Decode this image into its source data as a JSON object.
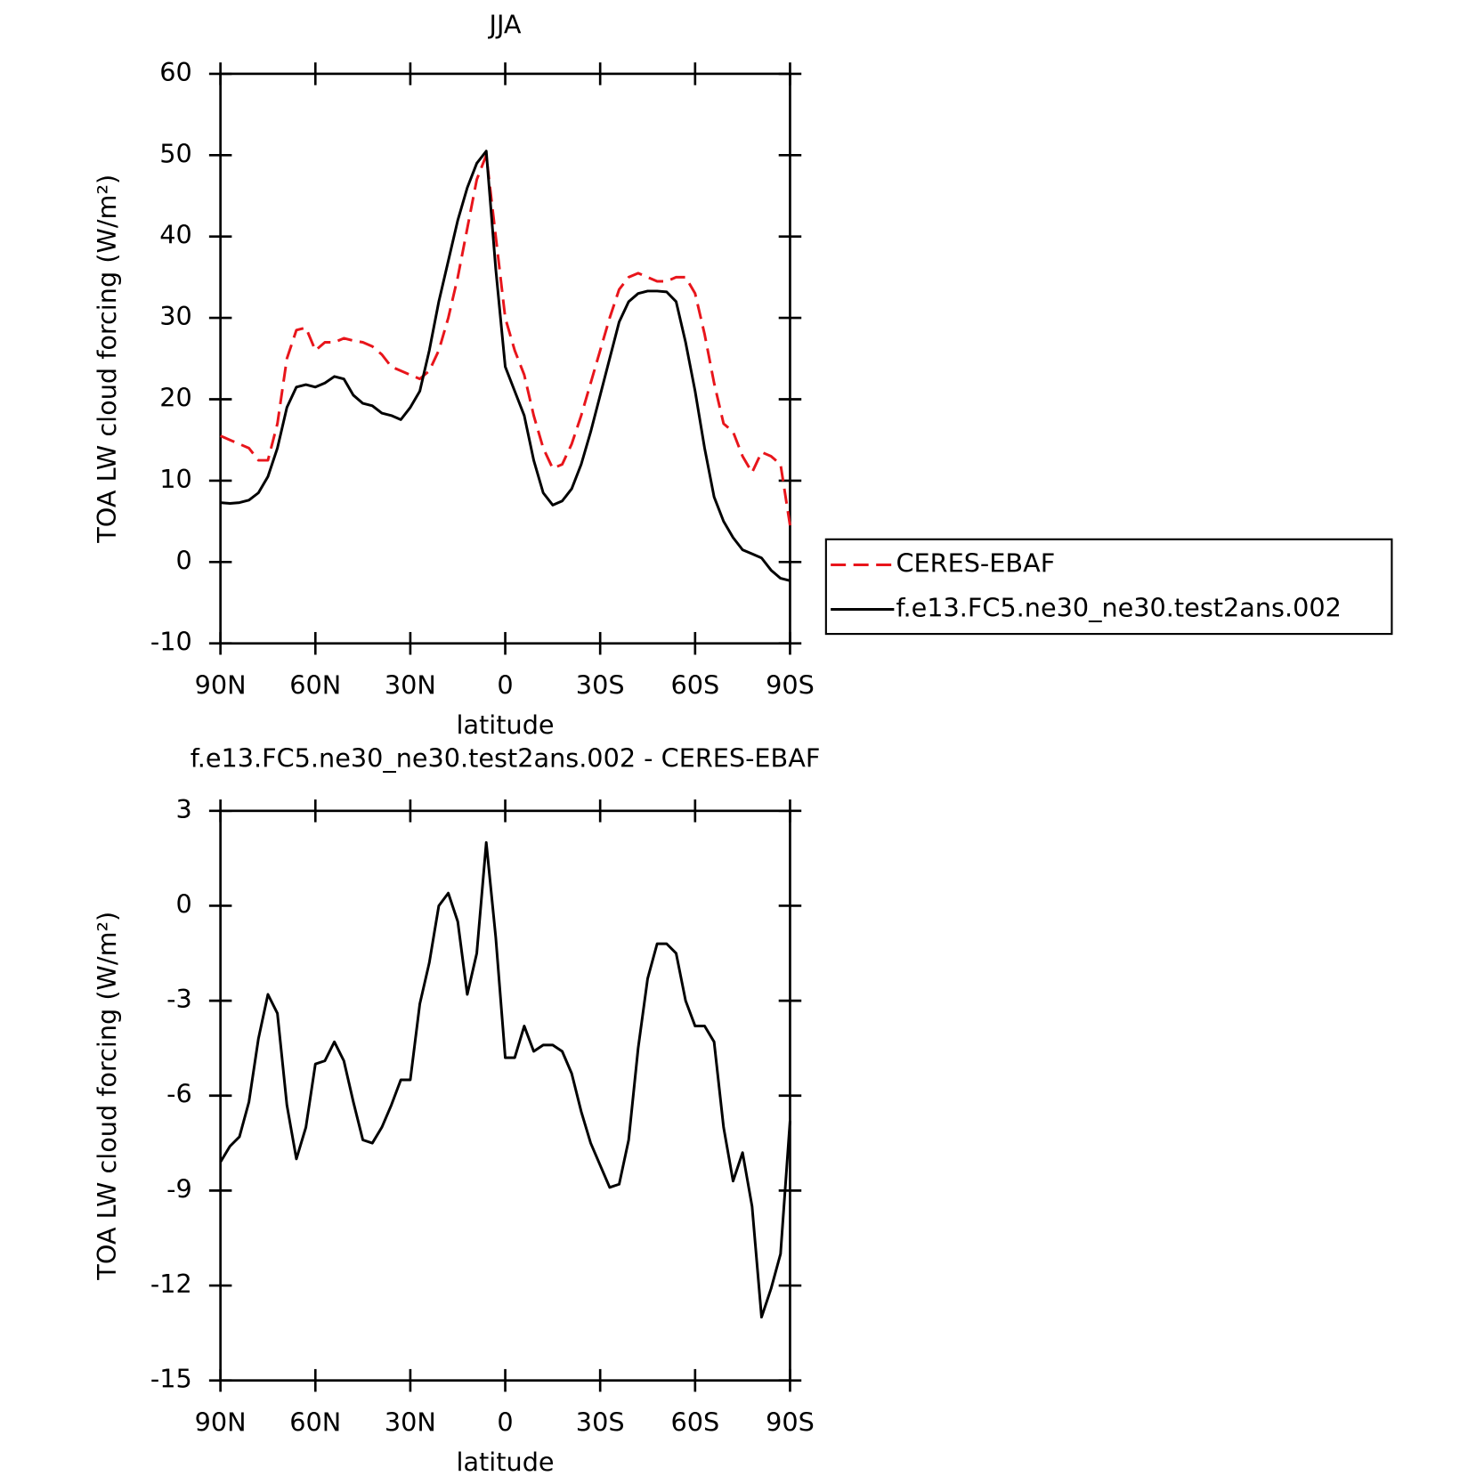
{
  "chart_data": [
    {
      "type": "line",
      "title": "JJA",
      "x_label": "latitude",
      "y_label": "TOA LW cloud forcing (W/m²)",
      "x": [
        90,
        87,
        84,
        81,
        78,
        75,
        72,
        69,
        66,
        63,
        60,
        57,
        54,
        51,
        48,
        45,
        42,
        39,
        36,
        33,
        30,
        27,
        24,
        21,
        18,
        15,
        12,
        9,
        6,
        3,
        0,
        -3,
        -6,
        -9,
        -12,
        -15,
        -18,
        -21,
        -24,
        -27,
        -30,
        -33,
        -36,
        -39,
        -42,
        -45,
        -48,
        -51,
        -54,
        -57,
        -60,
        -63,
        -66,
        -69,
        -72,
        -75,
        -78,
        -81,
        -84,
        -87,
        -90
      ],
      "series": [
        {
          "name": "CERES-EBAF",
          "color": "#e8151b",
          "line_style": "dashed",
          "values": [
            15.5,
            15,
            14.5,
            14,
            12.5,
            12.5,
            17,
            25,
            28.5,
            28.8,
            26,
            27,
            27,
            27.5,
            27.2,
            27,
            26.5,
            25.5,
            24,
            23.5,
            23,
            22.5,
            23.5,
            26,
            30,
            35,
            41,
            47,
            50,
            40,
            30,
            26,
            23,
            18,
            14,
            11.5,
            12,
            14.5,
            18,
            22,
            26,
            30,
            33.5,
            35,
            35.5,
            35,
            34.5,
            34.5,
            35,
            35,
            33,
            28,
            22,
            17,
            16,
            13,
            11,
            13.5,
            13,
            12,
            4.5
          ]
        },
        {
          "name": "f.e13.FC5.ne30_ne30.test2ans.002",
          "color": "#000000",
          "line_style": "solid",
          "values": [
            7.3,
            7.2,
            7.3,
            7.6,
            8.5,
            10.5,
            14,
            19,
            21.5,
            21.8,
            21.5,
            22,
            22.8,
            22.5,
            20.5,
            19.5,
            19.2,
            18.3,
            18,
            17.5,
            19,
            21,
            26,
            32,
            37,
            42,
            46,
            49,
            50.5,
            36,
            24,
            21,
            18,
            12.5,
            8.5,
            7,
            7.5,
            9,
            12,
            16,
            20.5,
            25,
            29.5,
            32,
            33,
            33.3,
            33.3,
            33.2,
            32,
            27,
            21,
            14,
            8,
            5,
            3,
            1.5,
            1,
            0.5,
            -1,
            -2,
            -2.3
          ]
        }
      ],
      "xlim": [
        90,
        -90
      ],
      "xticks": [
        {
          "value": 90,
          "label": "90N"
        },
        {
          "value": 60,
          "label": "60N"
        },
        {
          "value": 30,
          "label": "30N"
        },
        0,
        {
          "value": -30,
          "label": "30S"
        },
        {
          "value": -60,
          "label": "60S"
        },
        {
          "value": -90,
          "label": "90S"
        }
      ],
      "ylim": [
        -10,
        60
      ],
      "yticks": [
        -10,
        0,
        10,
        20,
        30,
        40,
        50,
        60
      ],
      "legend": "right"
    },
    {
      "type": "line",
      "title": "f.e13.FC5.ne30_ne30.test2ans.002 - CERES-EBAF",
      "x_label": "latitude",
      "y_label": "TOA LW cloud forcing (W/m²)",
      "x": [
        90,
        87,
        84,
        81,
        78,
        75,
        72,
        69,
        66,
        63,
        60,
        57,
        54,
        51,
        48,
        45,
        42,
        39,
        36,
        33,
        30,
        27,
        24,
        21,
        18,
        15,
        12,
        9,
        6,
        3,
        0,
        -3,
        -6,
        -9,
        -12,
        -15,
        -18,
        -21,
        -24,
        -27,
        -30,
        -33,
        -36,
        -39,
        -42,
        -45,
        -48,
        -51,
        -54,
        -57,
        -60,
        -63,
        -66,
        -69,
        -72,
        -75,
        -78,
        -81,
        -84,
        -87,
        -90
      ],
      "series": [
        {
          "color": "#000000",
          "line_style": "solid",
          "values": [
            -8.1,
            -7.6,
            -7.3,
            -6.2,
            -4.2,
            -2.8,
            -3.4,
            -6.3,
            -8.0,
            -7.0,
            -5.0,
            -4.9,
            -4.3,
            -4.9,
            -6.2,
            -7.4,
            -7.5,
            -7.0,
            -6.3,
            -5.5,
            -5.5,
            -3.1,
            -1.8,
            0.0,
            0.4,
            -0.5,
            -2.8,
            -1.5,
            2.0,
            -1.0,
            -4.8,
            -4.8,
            -3.8,
            -4.6,
            -4.4,
            -4.4,
            -4.6,
            -5.3,
            -6.5,
            -7.5,
            -8.2,
            -8.9,
            -8.8,
            -7.4,
            -4.5,
            -2.3,
            -1.2,
            -1.2,
            -1.5,
            -3.0,
            -3.8,
            -3.8,
            -4.3,
            -7.0,
            -8.7,
            -7.8,
            -9.5,
            -13.0,
            -12.1,
            -11.0,
            -6.8
          ]
        }
      ],
      "xlim": [
        90,
        -90
      ],
      "xticks": [
        {
          "value": 90,
          "label": "90N"
        },
        {
          "value": 60,
          "label": "60N"
        },
        {
          "value": 30,
          "label": "30N"
        },
        0,
        {
          "value": -30,
          "label": "30S"
        },
        {
          "value": -60,
          "label": "60S"
        },
        {
          "value": -90,
          "label": "90S"
        }
      ],
      "ylim": [
        -15,
        3
      ],
      "yticks": [
        -15,
        -12,
        -9,
        -6,
        -3,
        0,
        3
      ]
    }
  ]
}
